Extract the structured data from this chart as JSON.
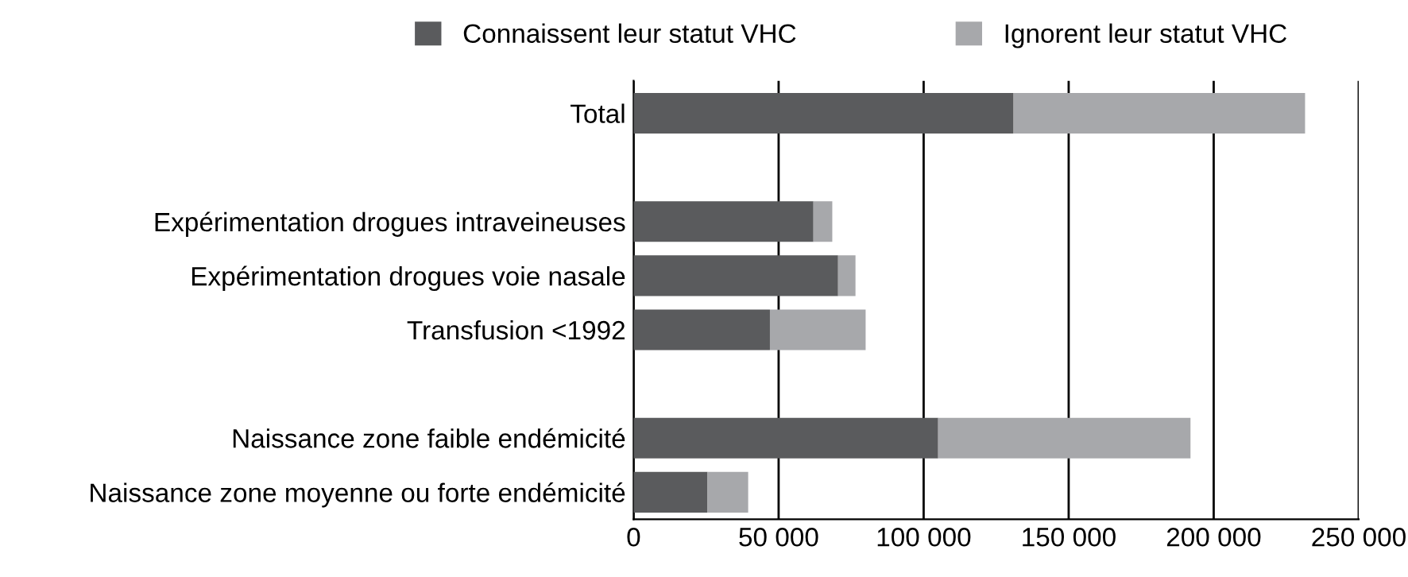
{
  "chart_data": {
    "type": "bar",
    "orientation": "horizontal",
    "stacked": true,
    "categories": [
      "Total",
      null,
      "Expérimentation drogues intraveineuses",
      "Expérimentation drogues voie nasale",
      "Transfusion <1992",
      null,
      "Naissance zone faible endémicité",
      "Naissance zone moyenne ou forte endémicité"
    ],
    "series": [
      {
        "name": "Connaissent leur statut VHC",
        "color": "#5a5b5d",
        "values": [
          131000,
          null,
          62000,
          70500,
          47000,
          null,
          105000,
          25500
        ]
      },
      {
        "name": "Ignorent leur statut VHC",
        "color": "#a7a8ab",
        "values": [
          100500,
          null,
          6500,
          6000,
          33000,
          null,
          87000,
          14000
        ]
      }
    ],
    "xlim": [
      0,
      250000
    ],
    "xticks": [
      0,
      {
        "value": 50000,
        "label": "50 000"
      },
      {
        "value": 100000,
        "label": "100 000"
      },
      {
        "value": 150000,
        "label": "150 000"
      },
      {
        "value": 200000,
        "label": "200 000"
      },
      {
        "value": 250000,
        "label": "250 000"
      }
    ],
    "grid": "x",
    "legend": "top"
  }
}
